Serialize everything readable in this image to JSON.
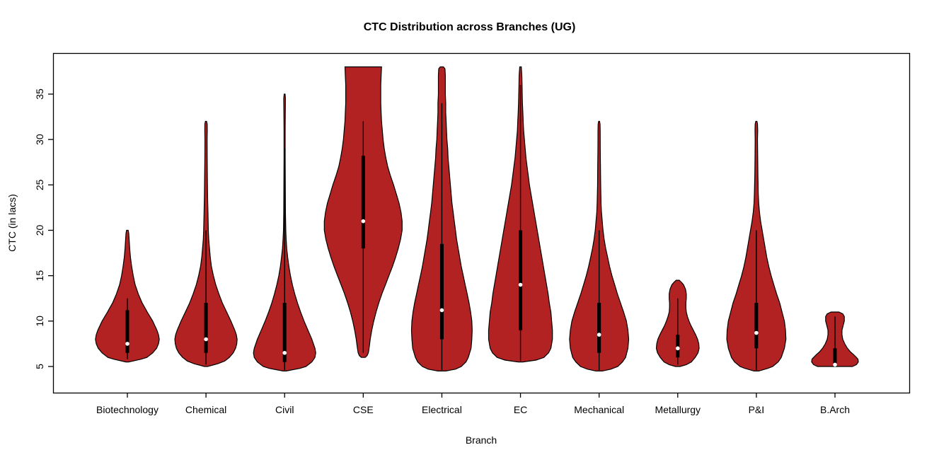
{
  "title": "CTC Distribution across Branches (UG)",
  "chart_data": {
    "type": "violin",
    "title": "CTC Distribution across Branches (UG)",
    "xlabel": "Branch",
    "ylabel": "CTC (in lacs)",
    "y_ticks": [
      5,
      10,
      15,
      20,
      25,
      30,
      35
    ],
    "ylim": [
      4,
      39
    ],
    "grid": false,
    "legend": "none",
    "violin_fill": "#B22222",
    "violin_stroke": "#000000",
    "median_dot_color": "#FFFFFF",
    "categories": [
      "Biotechnology",
      "Chemical",
      "Civil",
      "CSE",
      "Electrical",
      "EC",
      "Mechanical",
      "Metallurgy",
      "P&I",
      "B.Arch"
    ],
    "series": [
      {
        "name": "Biotechnology",
        "range": [
          5.5,
          20
        ],
        "q1": 6.5,
        "q3": 11.2,
        "median": 7.5,
        "whisker": [
          5.8,
          12.5
        ],
        "profile": [
          [
            5.5,
            0.04
          ],
          [
            5.8,
            0.35
          ],
          [
            6,
            0.5
          ],
          [
            6.5,
            0.65
          ],
          [
            7,
            0.75
          ],
          [
            7.5,
            0.8
          ],
          [
            8,
            0.82
          ],
          [
            8.5,
            0.8
          ],
          [
            9,
            0.76
          ],
          [
            10,
            0.65
          ],
          [
            11,
            0.51
          ],
          [
            12,
            0.38
          ],
          [
            13,
            0.28
          ],
          [
            14,
            0.2
          ],
          [
            15,
            0.15
          ],
          [
            16,
            0.11
          ],
          [
            17,
            0.08
          ],
          [
            18,
            0.06
          ],
          [
            19,
            0.045
          ],
          [
            19.7,
            0.035
          ],
          [
            20,
            0.02
          ]
        ]
      },
      {
        "name": "Chemical",
        "range": [
          5,
          32
        ],
        "q1": 6.5,
        "q3": 12,
        "median": 8,
        "whisker": [
          5.2,
          20
        ],
        "profile": [
          [
            5,
            0.04
          ],
          [
            5.3,
            0.3
          ],
          [
            5.6,
            0.48
          ],
          [
            6,
            0.6
          ],
          [
            6.5,
            0.7
          ],
          [
            7,
            0.76
          ],
          [
            7.5,
            0.79
          ],
          [
            8,
            0.8
          ],
          [
            8.5,
            0.78
          ],
          [
            9,
            0.74
          ],
          [
            10,
            0.64
          ],
          [
            11,
            0.53
          ],
          [
            12,
            0.42
          ],
          [
            13,
            0.33
          ],
          [
            14,
            0.25
          ],
          [
            15,
            0.19
          ],
          [
            16,
            0.14
          ],
          [
            17,
            0.11
          ],
          [
            18,
            0.09
          ],
          [
            19,
            0.07
          ],
          [
            20,
            0.06
          ],
          [
            22,
            0.05
          ],
          [
            24,
            0.04
          ],
          [
            26,
            0.035
          ],
          [
            28,
            0.03
          ],
          [
            30,
            0.028
          ],
          [
            31,
            0.032
          ],
          [
            31.7,
            0.03
          ],
          [
            32,
            0.015
          ]
        ]
      },
      {
        "name": "Civil",
        "range": [
          4.5,
          35
        ],
        "q1": 5.5,
        "q3": 12,
        "median": 6.5,
        "whisker": [
          4.6,
          29
        ],
        "profile": [
          [
            4.5,
            0.04
          ],
          [
            4.8,
            0.4
          ],
          [
            5,
            0.55
          ],
          [
            5.5,
            0.7
          ],
          [
            6,
            0.78
          ],
          [
            6.5,
            0.8
          ],
          [
            7,
            0.78
          ],
          [
            7.5,
            0.74
          ],
          [
            8,
            0.7
          ],
          [
            9,
            0.6
          ],
          [
            10,
            0.5
          ],
          [
            11,
            0.41
          ],
          [
            12,
            0.33
          ],
          [
            13,
            0.26
          ],
          [
            14,
            0.2
          ],
          [
            15,
            0.15
          ],
          [
            16,
            0.11
          ],
          [
            17,
            0.08
          ],
          [
            18,
            0.055
          ],
          [
            19,
            0.04
          ],
          [
            20,
            0.03
          ],
          [
            22,
            0.022
          ],
          [
            25,
            0.018
          ],
          [
            28,
            0.015
          ],
          [
            31,
            0.015
          ],
          [
            33,
            0.018
          ],
          [
            34.5,
            0.022
          ],
          [
            35,
            0.012
          ]
        ]
      },
      {
        "name": "CSE",
        "range": [
          6,
          38
        ],
        "q1": 18,
        "q3": 28.2,
        "median": 21,
        "whisker": [
          6.5,
          32
        ],
        "profile": [
          [
            6,
            0.05
          ],
          [
            6.2,
            0.1
          ],
          [
            6.5,
            0.13
          ],
          [
            7,
            0.15
          ],
          [
            8,
            0.18
          ],
          [
            9,
            0.22
          ],
          [
            10,
            0.27
          ],
          [
            11,
            0.33
          ],
          [
            12,
            0.4
          ],
          [
            13,
            0.48
          ],
          [
            14,
            0.57
          ],
          [
            15,
            0.66
          ],
          [
            16,
            0.75
          ],
          [
            17,
            0.83
          ],
          [
            18,
            0.9
          ],
          [
            19,
            0.96
          ],
          [
            20,
            1.0
          ],
          [
            21,
            1.0
          ],
          [
            22,
            0.97
          ],
          [
            23,
            0.92
          ],
          [
            24,
            0.85
          ],
          [
            25,
            0.78
          ],
          [
            26,
            0.7
          ],
          [
            27,
            0.63
          ],
          [
            28,
            0.58
          ],
          [
            29,
            0.54
          ],
          [
            30,
            0.51
          ],
          [
            31,
            0.49
          ],
          [
            32,
            0.47
          ],
          [
            33,
            0.46
          ],
          [
            34,
            0.45
          ],
          [
            35,
            0.45
          ],
          [
            36,
            0.45
          ],
          [
            37,
            0.46
          ],
          [
            38,
            0.47
          ]
        ]
      },
      {
        "name": "Electrical",
        "range": [
          4.5,
          38
        ],
        "q1": 8,
        "q3": 18.5,
        "median": 11.2,
        "whisker": [
          4.6,
          34
        ],
        "profile": [
          [
            4.5,
            0.1
          ],
          [
            4.7,
            0.35
          ],
          [
            5,
            0.5
          ],
          [
            5.5,
            0.62
          ],
          [
            6,
            0.68
          ],
          [
            7,
            0.75
          ],
          [
            8,
            0.77
          ],
          [
            9,
            0.78
          ],
          [
            10,
            0.77
          ],
          [
            11,
            0.74
          ],
          [
            12,
            0.7
          ],
          [
            13,
            0.65
          ],
          [
            14,
            0.6
          ],
          [
            15,
            0.55
          ],
          [
            16,
            0.5
          ],
          [
            17,
            0.46
          ],
          [
            18,
            0.42
          ],
          [
            19,
            0.38
          ],
          [
            20,
            0.35
          ],
          [
            21,
            0.32
          ],
          [
            22,
            0.29
          ],
          [
            23,
            0.26
          ],
          [
            24,
            0.24
          ],
          [
            25,
            0.22
          ],
          [
            26,
            0.2
          ],
          [
            27,
            0.18
          ],
          [
            28,
            0.16
          ],
          [
            29,
            0.15
          ],
          [
            30,
            0.13
          ],
          [
            31,
            0.12
          ],
          [
            32,
            0.11
          ],
          [
            33,
            0.1
          ],
          [
            34,
            0.1
          ],
          [
            35,
            0.09
          ],
          [
            36,
            0.09
          ],
          [
            37,
            0.09
          ],
          [
            37.8,
            0.08
          ],
          [
            38,
            0.04
          ]
        ]
      },
      {
        "name": "EC",
        "range": [
          5.5,
          38
        ],
        "q1": 9,
        "q3": 20,
        "median": 14,
        "whisker": [
          5.6,
          36
        ],
        "profile": [
          [
            5.5,
            0.06
          ],
          [
            5.7,
            0.4
          ],
          [
            6,
            0.6
          ],
          [
            6.5,
            0.72
          ],
          [
            7,
            0.78
          ],
          [
            8,
            0.82
          ],
          [
            9,
            0.82
          ],
          [
            10,
            0.8
          ],
          [
            11,
            0.78
          ],
          [
            12,
            0.74
          ],
          [
            13,
            0.71
          ],
          [
            14,
            0.67
          ],
          [
            15,
            0.63
          ],
          [
            16,
            0.59
          ],
          [
            17,
            0.55
          ],
          [
            18,
            0.51
          ],
          [
            19,
            0.47
          ],
          [
            20,
            0.43
          ],
          [
            21,
            0.39
          ],
          [
            22,
            0.35
          ],
          [
            23,
            0.31
          ],
          [
            24,
            0.27
          ],
          [
            25,
            0.23
          ],
          [
            26,
            0.2
          ],
          [
            27,
            0.17
          ],
          [
            28,
            0.14
          ],
          [
            29,
            0.12
          ],
          [
            30,
            0.1
          ],
          [
            31,
            0.08
          ],
          [
            32,
            0.07
          ],
          [
            33,
            0.06
          ],
          [
            34,
            0.05
          ],
          [
            35,
            0.045
          ],
          [
            36,
            0.04
          ],
          [
            37,
            0.035
          ],
          [
            38,
            0.02
          ]
        ]
      },
      {
        "name": "Mechanical",
        "range": [
          4.5,
          32
        ],
        "q1": 6.5,
        "q3": 12,
        "median": 8.5,
        "whisker": [
          4.6,
          20
        ],
        "profile": [
          [
            4.5,
            0.08
          ],
          [
            4.7,
            0.3
          ],
          [
            5,
            0.48
          ],
          [
            5.5,
            0.6
          ],
          [
            6,
            0.68
          ],
          [
            7,
            0.74
          ],
          [
            8,
            0.76
          ],
          [
            9,
            0.74
          ],
          [
            10,
            0.7
          ],
          [
            11,
            0.63
          ],
          [
            12,
            0.55
          ],
          [
            13,
            0.47
          ],
          [
            14,
            0.4
          ],
          [
            15,
            0.33
          ],
          [
            16,
            0.27
          ],
          [
            17,
            0.22
          ],
          [
            18,
            0.17
          ],
          [
            19,
            0.13
          ],
          [
            20,
            0.1
          ],
          [
            21,
            0.08
          ],
          [
            22,
            0.06
          ],
          [
            23,
            0.05
          ],
          [
            25,
            0.04
          ],
          [
            27,
            0.035
          ],
          [
            29,
            0.03
          ],
          [
            31,
            0.028
          ],
          [
            31.7,
            0.025
          ],
          [
            32,
            0.012
          ]
        ]
      },
      {
        "name": "Metallurgy",
        "range": [
          5,
          14.5
        ],
        "q1": 6,
        "q3": 8.5,
        "median": 7,
        "whisker": [
          5.2,
          12.5
        ],
        "profile": [
          [
            5,
            0.06
          ],
          [
            5.2,
            0.22
          ],
          [
            5.5,
            0.35
          ],
          [
            6,
            0.45
          ],
          [
            6.5,
            0.52
          ],
          [
            7,
            0.55
          ],
          [
            7.5,
            0.54
          ],
          [
            8,
            0.51
          ],
          [
            8.5,
            0.46
          ],
          [
            9,
            0.4
          ],
          [
            9.5,
            0.34
          ],
          [
            10,
            0.29
          ],
          [
            10.5,
            0.25
          ],
          [
            11,
            0.22
          ],
          [
            11.5,
            0.21
          ],
          [
            12,
            0.21
          ],
          [
            12.5,
            0.22
          ],
          [
            13,
            0.22
          ],
          [
            13.5,
            0.2
          ],
          [
            14,
            0.15
          ],
          [
            14.3,
            0.09
          ],
          [
            14.5,
            0.04
          ]
        ]
      },
      {
        "name": "P&I",
        "range": [
          4.5,
          32
        ],
        "q1": 7,
        "q3": 12,
        "median": 8.7,
        "whisker": [
          4.6,
          20
        ],
        "profile": [
          [
            4.5,
            0.06
          ],
          [
            4.8,
            0.3
          ],
          [
            5,
            0.42
          ],
          [
            5.5,
            0.56
          ],
          [
            6,
            0.64
          ],
          [
            7,
            0.72
          ],
          [
            8,
            0.76
          ],
          [
            9,
            0.75
          ],
          [
            10,
            0.72
          ],
          [
            11,
            0.66
          ],
          [
            12,
            0.6
          ],
          [
            13,
            0.52
          ],
          [
            14,
            0.45
          ],
          [
            15,
            0.38
          ],
          [
            16,
            0.32
          ],
          [
            17,
            0.27
          ],
          [
            18,
            0.23
          ],
          [
            19,
            0.19
          ],
          [
            20,
            0.15
          ],
          [
            21,
            0.11
          ],
          [
            22,
            0.08
          ],
          [
            23,
            0.06
          ],
          [
            24,
            0.05
          ],
          [
            26,
            0.04
          ],
          [
            28,
            0.035
          ],
          [
            30,
            0.03
          ],
          [
            31,
            0.035
          ],
          [
            31.7,
            0.03
          ],
          [
            32,
            0.015
          ]
        ]
      },
      {
        "name": "B.Arch",
        "range": [
          5,
          11
        ],
        "q1": 5,
        "q3": 7,
        "median": 5.2,
        "whisker": [
          5,
          10.5
        ],
        "profile": [
          [
            5,
            0.45
          ],
          [
            5.2,
            0.55
          ],
          [
            5.5,
            0.6
          ],
          [
            5.8,
            0.59
          ],
          [
            6,
            0.55
          ],
          [
            6.3,
            0.48
          ],
          [
            6.6,
            0.4
          ],
          [
            7,
            0.32
          ],
          [
            7.5,
            0.25
          ],
          [
            8,
            0.2
          ],
          [
            8.5,
            0.18
          ],
          [
            9,
            0.18
          ],
          [
            9.5,
            0.21
          ],
          [
            10,
            0.24
          ],
          [
            10.5,
            0.24
          ],
          [
            10.8,
            0.2
          ],
          [
            11,
            0.1
          ]
        ]
      }
    ]
  }
}
